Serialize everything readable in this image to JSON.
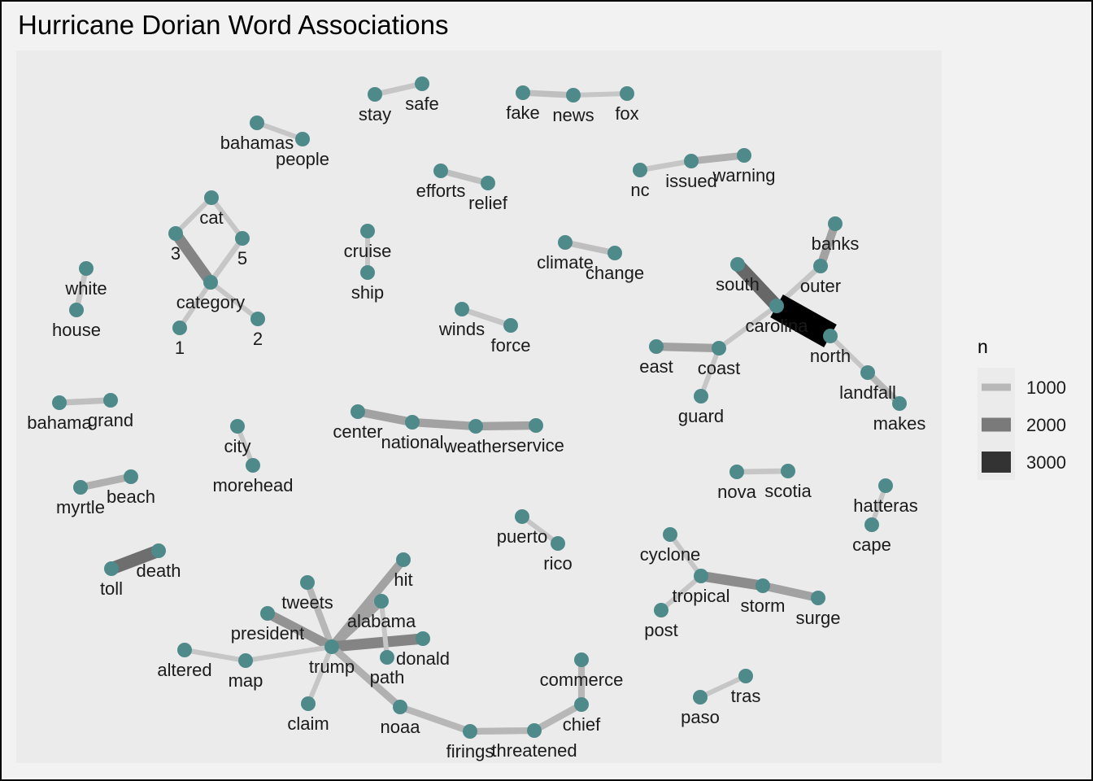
{
  "chart_data": {
    "type": "network",
    "title": "Hurricane Dorian Word Associations",
    "legend": {
      "title": "n",
      "position": "right",
      "entries": [
        {
          "label": "1000",
          "value": 1000,
          "color": "#b8b8b8"
        },
        {
          "label": "2000",
          "value": 2000,
          "color": "#7a7a7a"
        },
        {
          "label": "3000",
          "value": 3000,
          "color": "#333333"
        }
      ]
    },
    "style": {
      "panel_background": "#ebebeb",
      "node_color": "#4f8a8b",
      "edge_scale": [
        {
          "n": 1000,
          "color": "#c6c6c6"
        },
        {
          "n": 2000,
          "color": "#7d7d7d"
        },
        {
          "n": 3000,
          "color": "#333333"
        },
        {
          "n": 4500,
          "color": "#000000"
        }
      ]
    },
    "nodes": [
      {
        "id": "stay",
        "label": "stay"
      },
      {
        "id": "safe",
        "label": "safe"
      },
      {
        "id": "fake",
        "label": "fake"
      },
      {
        "id": "news",
        "label": "news"
      },
      {
        "id": "fox",
        "label": "fox"
      },
      {
        "id": "bahamas",
        "label": "bahamas"
      },
      {
        "id": "people",
        "label": "people"
      },
      {
        "id": "efforts",
        "label": "efforts"
      },
      {
        "id": "relief",
        "label": "relief"
      },
      {
        "id": "nc",
        "label": "nc"
      },
      {
        "id": "issued",
        "label": "issued"
      },
      {
        "id": "warning",
        "label": "warning"
      },
      {
        "id": "cat",
        "label": "cat"
      },
      {
        "id": "3",
        "label": "3"
      },
      {
        "id": "5",
        "label": "5"
      },
      {
        "id": "category",
        "label": "category"
      },
      {
        "id": "1",
        "label": "1"
      },
      {
        "id": "2",
        "label": "2"
      },
      {
        "id": "cruise",
        "label": "cruise"
      },
      {
        "id": "ship",
        "label": "ship"
      },
      {
        "id": "climate",
        "label": "climate"
      },
      {
        "id": "change",
        "label": "change"
      },
      {
        "id": "banks",
        "label": "banks"
      },
      {
        "id": "outer",
        "label": "outer"
      },
      {
        "id": "south",
        "label": "south"
      },
      {
        "id": "carolina",
        "label": "carolina"
      },
      {
        "id": "north",
        "label": "north"
      },
      {
        "id": "white",
        "label": "white"
      },
      {
        "id": "house",
        "label": "house"
      },
      {
        "id": "winds",
        "label": "winds"
      },
      {
        "id": "force",
        "label": "force"
      },
      {
        "id": "east",
        "label": "east"
      },
      {
        "id": "coast",
        "label": "coast"
      },
      {
        "id": "guard",
        "label": "guard"
      },
      {
        "id": "landfall",
        "label": "landfall"
      },
      {
        "id": "makes",
        "label": "makes"
      },
      {
        "id": "bahama",
        "label": "bahama"
      },
      {
        "id": "grand",
        "label": "grand"
      },
      {
        "id": "city",
        "label": "city"
      },
      {
        "id": "morehead",
        "label": "morehead"
      },
      {
        "id": "center",
        "label": "center"
      },
      {
        "id": "national",
        "label": "national"
      },
      {
        "id": "weather",
        "label": "weather"
      },
      {
        "id": "service",
        "label": "service"
      },
      {
        "id": "myrtle",
        "label": "myrtle"
      },
      {
        "id": "beach",
        "label": "beach"
      },
      {
        "id": "nova",
        "label": "nova"
      },
      {
        "id": "scotia",
        "label": "scotia"
      },
      {
        "id": "hatteras",
        "label": "hatteras"
      },
      {
        "id": "cape",
        "label": "cape"
      },
      {
        "id": "puerto",
        "label": "puerto"
      },
      {
        "id": "rico",
        "label": "rico"
      },
      {
        "id": "cyclone",
        "label": "cyclone"
      },
      {
        "id": "tropical",
        "label": "tropical"
      },
      {
        "id": "storm",
        "label": "storm"
      },
      {
        "id": "surge",
        "label": "surge"
      },
      {
        "id": "post",
        "label": "post"
      },
      {
        "id": "toll",
        "label": "toll"
      },
      {
        "id": "death",
        "label": "death"
      },
      {
        "id": "hit",
        "label": "hit"
      },
      {
        "id": "tweets",
        "label": "tweets"
      },
      {
        "id": "alabama",
        "label": "alabama"
      },
      {
        "id": "president",
        "label": "president"
      },
      {
        "id": "donald",
        "label": "donald"
      },
      {
        "id": "trump",
        "label": "trump"
      },
      {
        "id": "path",
        "label": "path"
      },
      {
        "id": "altered",
        "label": "altered"
      },
      {
        "id": "map",
        "label": "map"
      },
      {
        "id": "claim",
        "label": "claim"
      },
      {
        "id": "noaa",
        "label": "noaa"
      },
      {
        "id": "firings",
        "label": "firings"
      },
      {
        "id": "threatened",
        "label": "threatened"
      },
      {
        "id": "chief",
        "label": "chief"
      },
      {
        "id": "commerce",
        "label": "commerce"
      },
      {
        "id": "paso",
        "label": "paso"
      },
      {
        "id": "tras",
        "label": "tras"
      }
    ],
    "edges": [
      {
        "from": "stay",
        "to": "safe",
        "n": 1000
      },
      {
        "from": "fake",
        "to": "news",
        "n": 1100
      },
      {
        "from": "news",
        "to": "fox",
        "n": 900
      },
      {
        "from": "bahamas",
        "to": "people",
        "n": 900
      },
      {
        "from": "efforts",
        "to": "relief",
        "n": 1100
      },
      {
        "from": "nc",
        "to": "issued",
        "n": 1000
      },
      {
        "from": "issued",
        "to": "warning",
        "n": 1300
      },
      {
        "from": "cat",
        "to": "3",
        "n": 900
      },
      {
        "from": "cat",
        "to": "5",
        "n": 900
      },
      {
        "from": "3",
        "to": "category",
        "n": 1900
      },
      {
        "from": "5",
        "to": "category",
        "n": 1000
      },
      {
        "from": "category",
        "to": "1",
        "n": 900
      },
      {
        "from": "category",
        "to": "2",
        "n": 900
      },
      {
        "from": "cruise",
        "to": "ship",
        "n": 900
      },
      {
        "from": "climate",
        "to": "change",
        "n": 1100
      },
      {
        "from": "banks",
        "to": "outer",
        "n": 1500
      },
      {
        "from": "outer",
        "to": "carolina",
        "n": 1000
      },
      {
        "from": "south",
        "to": "carolina",
        "n": 2300
      },
      {
        "from": "carolina",
        "to": "north",
        "n": 4500
      },
      {
        "from": "carolina",
        "to": "coast",
        "n": 900
      },
      {
        "from": "north",
        "to": "landfall",
        "n": 900
      },
      {
        "from": "white",
        "to": "house",
        "n": 1000
      },
      {
        "from": "winds",
        "to": "force",
        "n": 1000
      },
      {
        "from": "east",
        "to": "coast",
        "n": 1500
      },
      {
        "from": "coast",
        "to": "guard",
        "n": 900
      },
      {
        "from": "landfall",
        "to": "makes",
        "n": 1200
      },
      {
        "from": "bahama",
        "to": "grand",
        "n": 1100
      },
      {
        "from": "city",
        "to": "morehead",
        "n": 900
      },
      {
        "from": "center",
        "to": "national",
        "n": 1500
      },
      {
        "from": "national",
        "to": "weather",
        "n": 1500
      },
      {
        "from": "weather",
        "to": "service",
        "n": 1500
      },
      {
        "from": "myrtle",
        "to": "beach",
        "n": 1300
      },
      {
        "from": "nova",
        "to": "scotia",
        "n": 1000
      },
      {
        "from": "hatteras",
        "to": "cape",
        "n": 900
      },
      {
        "from": "puerto",
        "to": "rico",
        "n": 900
      },
      {
        "from": "cyclone",
        "to": "tropical",
        "n": 900
      },
      {
        "from": "tropical",
        "to": "storm",
        "n": 1800
      },
      {
        "from": "storm",
        "to": "surge",
        "n": 1500
      },
      {
        "from": "tropical",
        "to": "post",
        "n": 900
      },
      {
        "from": "toll",
        "to": "death",
        "n": 2200
      },
      {
        "from": "trump",
        "to": "hit",
        "n": 1500
      },
      {
        "from": "trump",
        "to": "tweets",
        "n": 1200
      },
      {
        "from": "trump",
        "to": "alabama",
        "n": 1500
      },
      {
        "from": "trump",
        "to": "president",
        "n": 1700
      },
      {
        "from": "trump",
        "to": "donald",
        "n": 1900
      },
      {
        "from": "alabama",
        "to": "path",
        "n": 900
      },
      {
        "from": "trump",
        "to": "map",
        "n": 900
      },
      {
        "from": "altered",
        "to": "map",
        "n": 900
      },
      {
        "from": "trump",
        "to": "claim",
        "n": 900
      },
      {
        "from": "trump",
        "to": "noaa",
        "n": 1300
      },
      {
        "from": "noaa",
        "to": "firings",
        "n": 1200
      },
      {
        "from": "firings",
        "to": "threatened",
        "n": 1200
      },
      {
        "from": "threatened",
        "to": "chief",
        "n": 1200
      },
      {
        "from": "chief",
        "to": "commerce",
        "n": 1200
      },
      {
        "from": "paso",
        "to": "tras",
        "n": 900
      }
    ]
  }
}
